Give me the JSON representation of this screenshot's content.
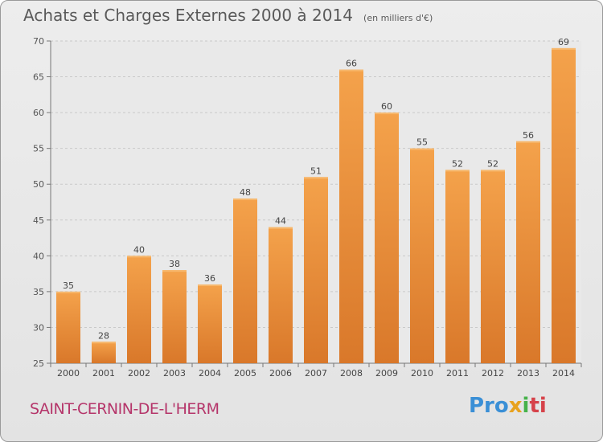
{
  "title": "Achats et Charges Externes 2000 à 2014",
  "subtitle": "(en milliers d'€)",
  "place": "SAINT-CERNIN-DE-L'HERM",
  "logo": {
    "text": "Proxiti",
    "parts": [
      "Pro",
      "x",
      "i",
      "ti"
    ]
  },
  "colors": {
    "bar_top": "#f4a24b",
    "bar_bottom": "#d9782a",
    "title": "#5a5a5a",
    "place": "#b5356a",
    "grid": "#c9c9c9"
  },
  "chart_data": {
    "type": "bar",
    "categories": [
      "2000",
      "2001",
      "2002",
      "2003",
      "2004",
      "2005",
      "2006",
      "2007",
      "2008",
      "2009",
      "2010",
      "2011",
      "2012",
      "2013",
      "2014"
    ],
    "values": [
      35,
      28,
      40,
      38,
      36,
      48,
      44,
      51,
      66,
      60,
      55,
      52,
      52,
      56,
      69
    ],
    "ylim": [
      25,
      70
    ],
    "yticks": [
      25,
      30,
      35,
      40,
      45,
      50,
      55,
      60,
      65,
      70
    ],
    "grid": true,
    "data_labels": true
  }
}
